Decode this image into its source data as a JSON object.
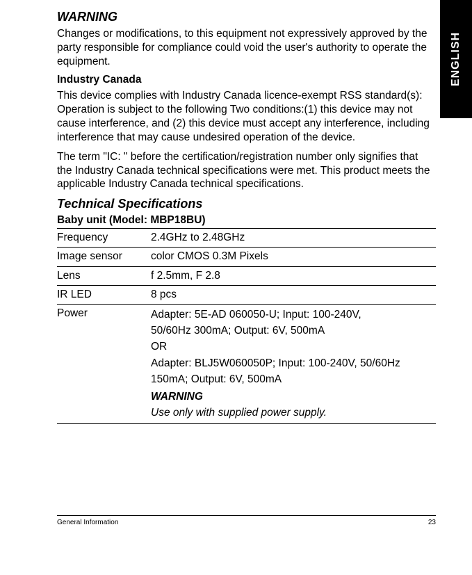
{
  "sideTab": "ENGLISH",
  "warningHeading": "WARNING",
  "warningText": "Changes or modifications, to this equipment not expressively approved by the party responsible for compliance could void the user's authority to operate the equipment.",
  "industryHeading": "Industry Canada",
  "industryP1": "This device complies with Industry Canada licence-exempt RSS standard(s): Operation is subject to the following Two conditions:(1) this device may not cause interference, and (2) this device must accept any interference, including interference that may cause undesired operation of the device.",
  "industryP2": "The term \"IC: \" before the certification/registration number only signifies that the Industry Canada technical specifications were met. This product meets the applicable Industry Canada technical specifications.",
  "specsHeading": "Technical Specifications",
  "modelHeading": "Baby unit (Model: MBP18BU)",
  "specs": {
    "row1": {
      "label": "Frequency",
      "value": "2.4GHz to 2.48GHz"
    },
    "row2": {
      "label": "Image sensor",
      "value": "color CMOS 0.3M Pixels"
    },
    "row3": {
      "label": "Lens",
      "value": "f 2.5mm, F 2.8"
    },
    "row4": {
      "label": "IR LED",
      "value": "8 pcs"
    },
    "row5": {
      "label": "Power",
      "line1": "Adapter: 5E-AD 060050-U; Input: 100-240V,",
      "line2": "50/60Hz 300mA; Output: 6V, 500mA",
      "line3": "OR",
      "line4": "Adapter: BLJ5W060050P; Input: 100-240V, 50/60Hz 150mA; Output: 6V, 500mA",
      "warnLabel": "WARNING",
      "warnText": "Use only with supplied power supply."
    }
  },
  "footerLeft": "General Information",
  "footerRight": "23"
}
